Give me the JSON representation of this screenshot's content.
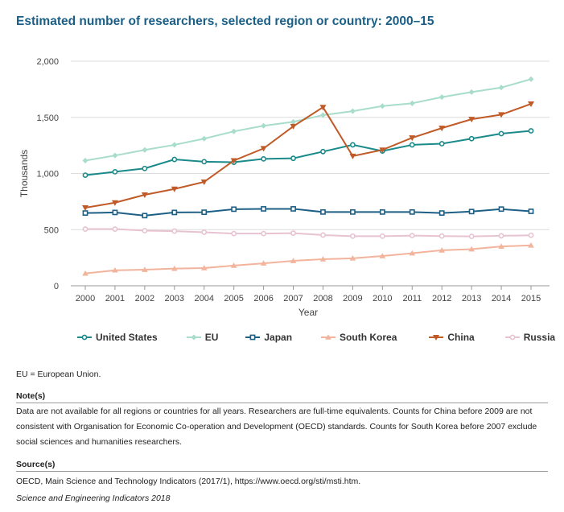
{
  "chart_data": {
    "type": "line",
    "title": "Estimated number of researchers, selected region or country: 2000–15",
    "xlabel": "Year",
    "ylabel": "Thousands",
    "ylim": [
      0,
      2000
    ],
    "yticks": [
      0,
      500,
      1000,
      1500,
      2000
    ],
    "ytick_labels": [
      "0",
      "500",
      "1,000",
      "1,500",
      "2,000"
    ],
    "categories": [
      "2000",
      "2001",
      "2002",
      "2003",
      "2004",
      "2005",
      "2006",
      "2007",
      "2008",
      "2009",
      "2010",
      "2011",
      "2012",
      "2013",
      "2014",
      "2015"
    ],
    "grid": true,
    "legend_position": "bottom",
    "series": [
      {
        "name": "United States",
        "color": "#1b8a8a",
        "marker": "circle-open",
        "values": [
          985,
          1015,
          1045,
          1125,
          1105,
          1100,
          1130,
          1135,
          1195,
          1255,
          1200,
          1255,
          1265,
          1310,
          1355,
          1380
        ]
      },
      {
        "name": "EU",
        "color": "#a8dccb",
        "marker": "diamond",
        "values": [
          1115,
          1160,
          1210,
          1255,
          1310,
          1375,
          1425,
          1460,
          1520,
          1555,
          1600,
          1625,
          1680,
          1725,
          1765,
          1840
        ]
      },
      {
        "name": "Japan",
        "color": "#1d5f85",
        "marker": "square-open",
        "values": [
          648,
          653,
          625,
          653,
          655,
          682,
          685,
          685,
          657,
          657,
          657,
          657,
          648,
          661,
          683,
          663
        ]
      },
      {
        "name": "South Korea",
        "color": "#f2b49c",
        "marker": "triangle-up",
        "values": [
          110,
          138,
          143,
          153,
          158,
          180,
          200,
          222,
          237,
          245,
          265,
          290,
          316,
          326,
          350,
          360
        ]
      },
      {
        "name": "China",
        "color": "#c05a27",
        "marker": "triangle-down",
        "values": [
          695,
          740,
          810,
          862,
          925,
          1115,
          1223,
          1420,
          1590,
          1155,
          1210,
          1318,
          1404,
          1483,
          1524,
          1620
        ]
      },
      {
        "name": "Russia",
        "color": "#e7c3d2",
        "marker": "circle-open",
        "values": [
          505,
          505,
          491,
          487,
          477,
          465,
          465,
          469,
          452,
          442,
          442,
          447,
          443,
          440,
          445,
          450
        ]
      }
    ]
  },
  "footnotes": {
    "abbrev": "EU = European Union.",
    "notes_heading": "Note(s)",
    "notes_text": "Data are not available for all regions or countries for all years. Researchers are full-time equivalents. Counts for China before 2009 are not consistent with Organisation for Economic Co-operation and Development (OECD) standards. Counts for South Korea before 2007 exclude social sciences and humanities researchers.",
    "source_heading": "Source(s)",
    "source_text": "OECD, Main Science and Technology Indicators (2017/1), https://www.oecd.org/sti/msti.htm.",
    "publication": "Science and Engineering Indicators 2018"
  }
}
